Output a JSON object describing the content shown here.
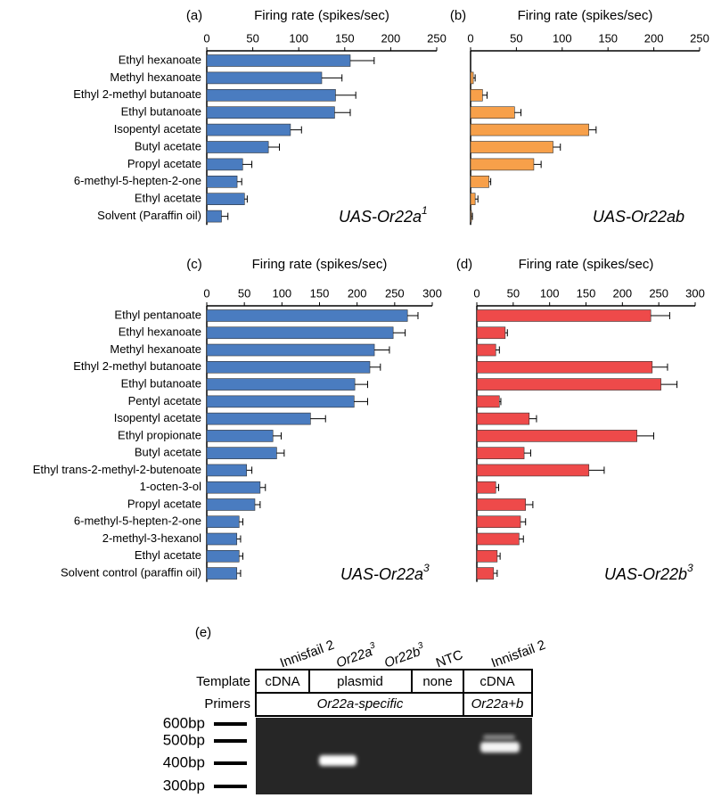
{
  "chart_data": [
    {
      "type": "bar",
      "panel": "(a)",
      "title": "Firing rate (spikes/sec)",
      "categories": [
        "Ethyl hexanoate",
        "Methyl hexanoate",
        "Ethyl 2-methyl butanoate",
        "Ethyl butanoate",
        "Isopentyl acetate",
        "Butyl acetate",
        "Propyl acetate",
        "6-methyl-5-hepten-2-one",
        "Ethyl acetate",
        "Solvent (Paraffin oil)"
      ],
      "values": [
        156,
        125,
        140,
        139,
        91,
        67,
        39,
        33,
        41,
        16
      ],
      "errors": [
        26,
        22,
        22,
        17,
        12,
        12,
        10,
        5,
        3,
        7
      ],
      "color": "#4a7cc0",
      "xlim": [
        0,
        250
      ],
      "xticks": [
        0,
        50,
        100,
        150,
        200,
        250
      ],
      "annotation": {
        "text": "UAS-Or22a",
        "sup": "1"
      }
    },
    {
      "type": "bar",
      "panel": "(b)",
      "title": "Firing rate (spikes/sec)",
      "values": [
        0,
        3,
        13,
        48,
        129,
        90,
        69,
        20,
        5,
        1
      ],
      "errors": [
        0,
        2,
        5,
        7,
        8,
        8,
        8,
        2,
        3,
        1
      ],
      "color": "#f7a04a",
      "xlim": [
        0,
        250
      ],
      "xticks": [
        0,
        50,
        100,
        150,
        200,
        250
      ],
      "annotation": {
        "text": "UAS-Or22ab"
      }
    },
    {
      "type": "bar",
      "panel": "(c)",
      "title": "Firing rate (spikes/sec)",
      "categories": [
        "Ethyl pentanoate",
        "Ethyl hexanoate",
        "Methyl hexanoate",
        "Ethyl 2-methyl butanoate",
        "Ethyl butanoate",
        "Pentyl acetate",
        "Isopentyl acetate",
        "Ethyl propionate",
        "Butyl acetate",
        "Ethyl trans-2-methyl-2-butenoate",
        "1-octen-3-ol",
        "Propyl acetate",
        "6-methyl-5-hepten-2-one",
        "2-methyl-3-hexanol",
        "Ethyl acetate",
        "Solvent control (paraffin oil)"
      ],
      "values": [
        267,
        248,
        223,
        217,
        197,
        196,
        138,
        88,
        93,
        53,
        71,
        64,
        43,
        40,
        43,
        40
      ],
      "errors": [
        14,
        16,
        20,
        14,
        17,
        18,
        20,
        11,
        10,
        7,
        7,
        7,
        5,
        5,
        5,
        5
      ],
      "color": "#4a7cc0",
      "xlim": [
        0,
        300
      ],
      "xticks": [
        0,
        50,
        100,
        150,
        200,
        250,
        300
      ],
      "annotation": {
        "text": "UAS-Or22a",
        "sup": "3"
      }
    },
    {
      "type": "bar",
      "panel": "(d)",
      "title": "Firing rate (spikes/sec)",
      "values": [
        239,
        39,
        26,
        241,
        253,
        31,
        72,
        220,
        65,
        154,
        26,
        67,
        60,
        58,
        28,
        23
      ],
      "errors": [
        26,
        3,
        5,
        21,
        22,
        2,
        10,
        23,
        9,
        21,
        4,
        10,
        7,
        6,
        4,
        5
      ],
      "color": "#ee4a4a",
      "xlim": [
        0,
        300
      ],
      "xticks": [
        0,
        50,
        100,
        150,
        200,
        250,
        300
      ],
      "annotation": {
        "text": "UAS-Or22b",
        "sup": "3"
      }
    }
  ],
  "gel": {
    "panel": "(e)",
    "lanes": [
      {
        "text": "Innisfail 2"
      },
      {
        "text": "Or22a",
        "sup": "3"
      },
      {
        "text": "Or22b",
        "sup": "3"
      },
      {
        "text": "NTC"
      },
      {
        "text": "Innisfail 2"
      }
    ],
    "rows": [
      {
        "label": "Template",
        "cells": [
          "cDNA",
          "plasmid",
          "none",
          "cDNA"
        ]
      },
      {
        "label": "Primers",
        "cells": [
          "Or22a-specific",
          "Or22a+b"
        ]
      }
    ],
    "ladder": [
      "600bp",
      "500bp",
      "400bp",
      "300bp"
    ]
  }
}
